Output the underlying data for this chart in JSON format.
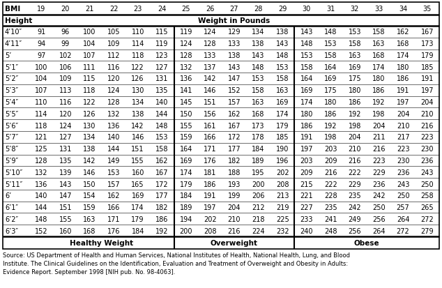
{
  "bmi_values": [
    19,
    20,
    21,
    22,
    23,
    24,
    25,
    26,
    27,
    28,
    29,
    30,
    31,
    32,
    33,
    34,
    35
  ],
  "heights": [
    "4’10″",
    "4’11″",
    "5’",
    "5’1″",
    "5’2″",
    "5’3″",
    "5’4″",
    "5’5″",
    "5’6″",
    "5’7″",
    "5’8″",
    "5’9″",
    "5’10″",
    "5’11″",
    "6’",
    "6’1″",
    "6’2″",
    "6’3″"
  ],
  "weights": [
    [
      91,
      96,
      100,
      105,
      110,
      115,
      119,
      124,
      129,
      134,
      138,
      143,
      148,
      153,
      158,
      162,
      167
    ],
    [
      94,
      99,
      104,
      109,
      114,
      119,
      124,
      128,
      133,
      138,
      143,
      148,
      153,
      158,
      163,
      168,
      173
    ],
    [
      97,
      102,
      107,
      112,
      118,
      123,
      128,
      133,
      138,
      143,
      148,
      153,
      158,
      163,
      168,
      174,
      179
    ],
    [
      100,
      106,
      111,
      116,
      122,
      127,
      132,
      137,
      143,
      148,
      153,
      158,
      164,
      169,
      174,
      180,
      185
    ],
    [
      104,
      109,
      115,
      120,
      126,
      131,
      136,
      142,
      147,
      153,
      158,
      164,
      169,
      175,
      180,
      186,
      191
    ],
    [
      107,
      113,
      118,
      124,
      130,
      135,
      141,
      146,
      152,
      158,
      163,
      169,
      175,
      180,
      186,
      191,
      197
    ],
    [
      110,
      116,
      122,
      128,
      134,
      140,
      145,
      151,
      157,
      163,
      169,
      174,
      180,
      186,
      192,
      197,
      204
    ],
    [
      114,
      120,
      126,
      132,
      138,
      144,
      150,
      156,
      162,
      168,
      174,
      180,
      186,
      192,
      198,
      204,
      210
    ],
    [
      118,
      124,
      130,
      136,
      142,
      148,
      155,
      161,
      167,
      173,
      179,
      186,
      192,
      198,
      204,
      210,
      216
    ],
    [
      121,
      127,
      134,
      140,
      146,
      153,
      159,
      166,
      172,
      178,
      185,
      191,
      198,
      204,
      211,
      217,
      223
    ],
    [
      125,
      131,
      138,
      144,
      151,
      158,
      164,
      171,
      177,
      184,
      190,
      197,
      203,
      210,
      216,
      223,
      230
    ],
    [
      128,
      135,
      142,
      149,
      155,
      162,
      169,
      176,
      182,
      189,
      196,
      203,
      209,
      216,
      223,
      230,
      236
    ],
    [
      132,
      139,
      146,
      153,
      160,
      167,
      174,
      181,
      188,
      195,
      202,
      209,
      216,
      222,
      229,
      236,
      243
    ],
    [
      136,
      143,
      150,
      157,
      165,
      172,
      179,
      186,
      193,
      200,
      208,
      215,
      222,
      229,
      236,
      243,
      250
    ],
    [
      140,
      147,
      154,
      162,
      169,
      177,
      184,
      191,
      199,
      206,
      213,
      221,
      228,
      235,
      242,
      250,
      258
    ],
    [
      144,
      151,
      159,
      166,
      174,
      182,
      189,
      197,
      204,
      212,
      219,
      227,
      235,
      242,
      250,
      257,
      265
    ],
    [
      148,
      155,
      163,
      171,
      179,
      186,
      194,
      202,
      210,
      218,
      225,
      233,
      241,
      249,
      256,
      264,
      272
    ],
    [
      152,
      160,
      168,
      176,
      184,
      192,
      200,
      208,
      216,
      224,
      232,
      240,
      248,
      256,
      264,
      272,
      279
    ]
  ],
  "source_text": "Source: US Department of Health and Human Services, National Institutes of Health, National Health, Lung, and Blood\nInstitute. The Clinical Guidelines on the Identification, Evaluation and Treatment of Overweight and Obesity in Adults:\nEvidence Report. September 1998 [NIH pub. No. 98-4063].",
  "bg_color": "#ffffff",
  "data_font_size": 7.0,
  "header_font_size": 7.5,
  "source_font_size": 6.0
}
